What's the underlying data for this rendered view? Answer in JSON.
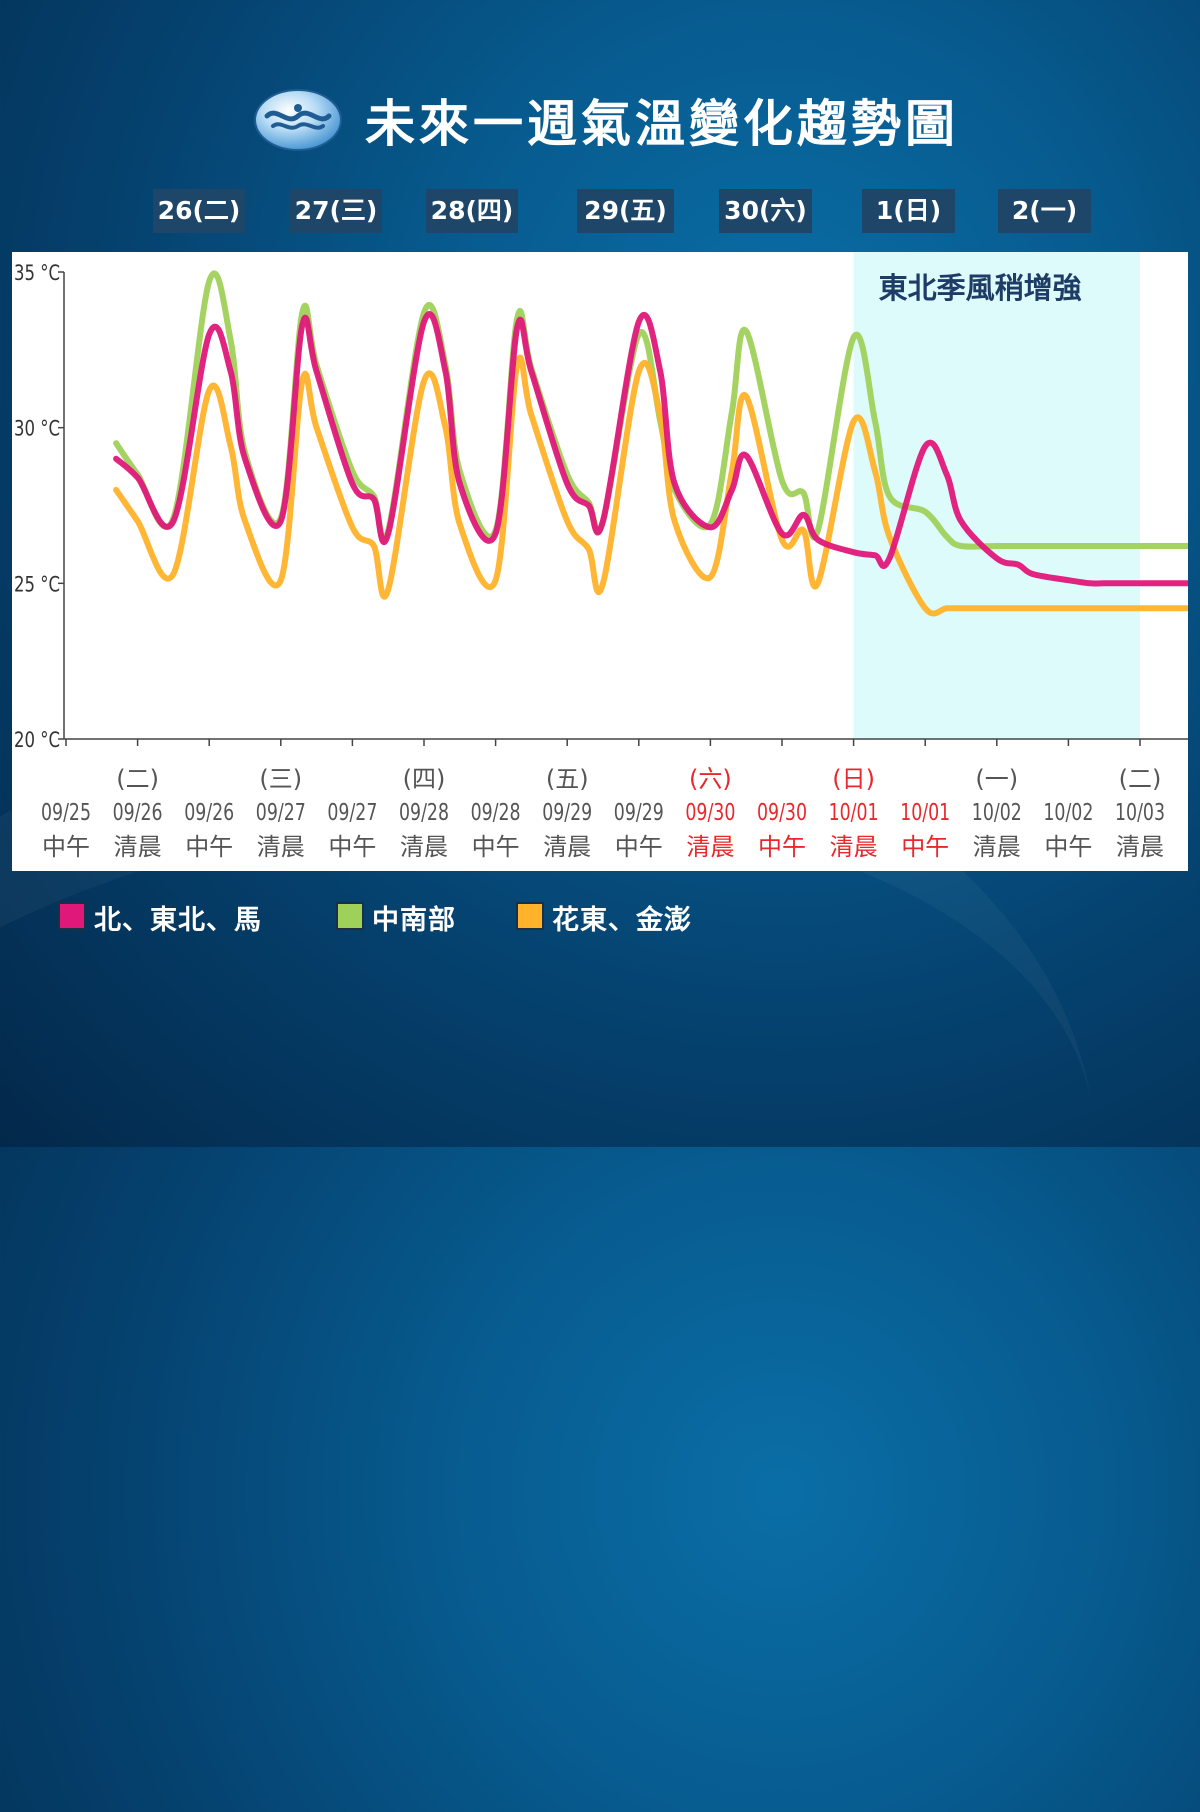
{
  "header": {
    "title": "未來一週氣溫變化趨勢圖",
    "logo_icon": "cwa-logo-icon"
  },
  "day_tabs": [
    "26(二)",
    "27(三)",
    "28(四)",
    "29(五)",
    "30(六)",
    "1(日)",
    "2(一)"
  ],
  "annotation": "東北季風稍增強",
  "colors": {
    "north": "#e0187a",
    "central_south": "#9fd15a",
    "east": "#ffb22a",
    "highlight": "#dcfbfa",
    "red_label": "#e8282c",
    "gray_label": "#555555"
  },
  "legend": [
    {
      "label": "北、東北、馬",
      "color": "#e0187a"
    },
    {
      "label": "中南部",
      "color": "#9fd15a"
    },
    {
      "label": "花東、金澎",
      "color": "#ffb22a"
    }
  ],
  "chart_data": {
    "type": "line",
    "title": "未來一週氣溫變化趨勢圖",
    "y_ticks": [
      "20 °C",
      "25 °C",
      "30 °C",
      "35 °C"
    ],
    "ylim": [
      20,
      35
    ],
    "x_ticks": [
      {
        "weekday": "",
        "date": "09/25",
        "time": "中午",
        "red": false
      },
      {
        "weekday": "(二)",
        "date": "09/26",
        "time": "清晨",
        "red": false
      },
      {
        "weekday": "",
        "date": "09/26",
        "time": "中午",
        "red": false
      },
      {
        "weekday": "(三)",
        "date": "09/27",
        "time": "清晨",
        "red": false
      },
      {
        "weekday": "",
        "date": "09/27",
        "time": "中午",
        "red": false
      },
      {
        "weekday": "(四)",
        "date": "09/28",
        "time": "清晨",
        "red": false
      },
      {
        "weekday": "",
        "date": "09/28",
        "time": "中午",
        "red": false
      },
      {
        "weekday": "(五)",
        "date": "09/29",
        "time": "清晨",
        "red": false
      },
      {
        "weekday": "",
        "date": "09/29",
        "time": "中午",
        "red": false
      },
      {
        "weekday": "(六)",
        "date": "09/30",
        "time": "清晨",
        "red": true
      },
      {
        "weekday": "",
        "date": "09/30",
        "time": "中午",
        "red": true
      },
      {
        "weekday": "(日)",
        "date": "10/01",
        "time": "清晨",
        "red": true
      },
      {
        "weekday": "",
        "date": "10/01",
        "time": "中午",
        "red": true
      },
      {
        "weekday": "(一)",
        "date": "10/02",
        "time": "清晨",
        "red": false
      },
      {
        "weekday": "",
        "date": "10/02",
        "time": "中午",
        "red": false
      },
      {
        "weekday": "(二)",
        "date": "10/03",
        "time": "清晨",
        "red": false
      }
    ],
    "highlight_range": [
      11,
      15
    ],
    "x": [
      0.7,
      1.0,
      1.5,
      2.0,
      2.3,
      2.5,
      3.0,
      3.3,
      3.5,
      4.0,
      4.3,
      4.5,
      5.0,
      5.3,
      5.5,
      6.0,
      6.3,
      6.5,
      7.0,
      7.3,
      7.5,
      8.0,
      8.3,
      8.5,
      9.0,
      9.3,
      9.5,
      10.0,
      10.3,
      10.5,
      11.0,
      11.3,
      11.5,
      12.0,
      12.3,
      12.5,
      13.0,
      13.3,
      13.5,
      14.0,
      14.3,
      14.5,
      15.0,
      15.3,
      15.5,
      15.7
    ],
    "series": [
      {
        "name": "北、東北、馬",
        "key": "north",
        "values": [
          29.0,
          28.4,
          27.0,
          33.0,
          31.8,
          29.0,
          27.0,
          33.3,
          31.8,
          28.2,
          27.7,
          26.6,
          33.4,
          31.8,
          28.2,
          26.6,
          33.2,
          31.8,
          28.2,
          27.5,
          27.0,
          33.4,
          31.8,
          28.2,
          26.8,
          28.0,
          29.1,
          26.6,
          27.2,
          26.4,
          26.0,
          25.9,
          25.8,
          29.4,
          28.5,
          27.0,
          25.8,
          25.6,
          25.3,
          25.1,
          25.0,
          25.0,
          25.0,
          25.0,
          25.0,
          25.0
        ]
      },
      {
        "name": "中南部",
        "key": "central_south",
        "values": [
          29.5,
          28.5,
          27.1,
          34.7,
          32.8,
          29.2,
          27.1,
          33.7,
          32.0,
          28.6,
          27.8,
          26.7,
          33.7,
          32.0,
          28.6,
          26.7,
          33.5,
          31.9,
          28.5,
          27.6,
          27.0,
          33.0,
          30.2,
          28.0,
          26.9,
          30.5,
          33.1,
          28.3,
          27.9,
          26.7,
          32.9,
          30.2,
          27.8,
          27.3,
          26.5,
          26.2,
          26.2,
          26.2,
          26.2,
          26.2,
          26.2,
          26.2,
          26.2,
          26.2,
          26.2,
          26.2
        ]
      },
      {
        "name": "花東、金澎",
        "key": "east",
        "values": [
          28.0,
          27.0,
          25.3,
          31.2,
          29.4,
          27.0,
          25.1,
          31.5,
          30.0,
          26.8,
          26.2,
          24.8,
          31.5,
          30.0,
          26.9,
          25.1,
          32.0,
          30.4,
          27.0,
          26.1,
          25.0,
          31.8,
          30.4,
          27.0,
          25.2,
          28.6,
          31.0,
          26.4,
          26.7,
          25.0,
          30.2,
          28.6,
          26.5,
          24.2,
          24.2,
          24.2,
          24.2,
          24.2,
          24.2,
          24.2,
          24.2,
          24.2,
          24.2,
          24.2,
          24.2,
          24.2
        ]
      }
    ]
  }
}
